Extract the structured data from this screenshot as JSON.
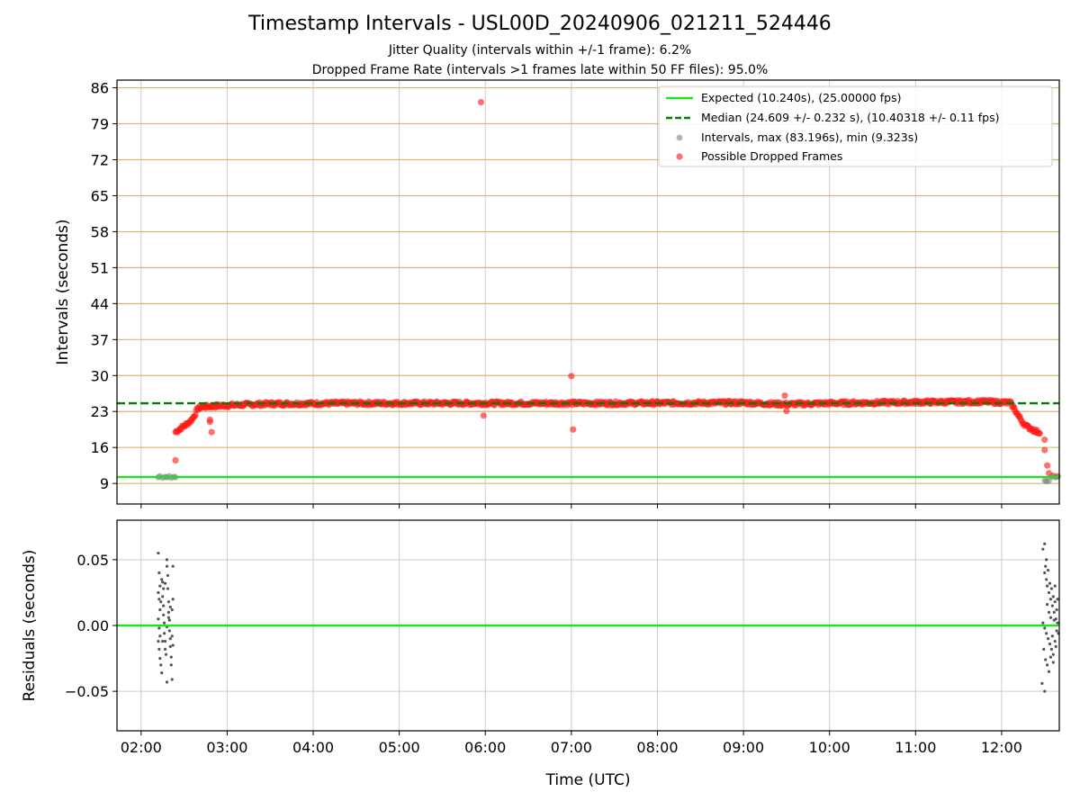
{
  "title": "Timestamp Intervals - USL00D_20240906_021211_524446",
  "subtitle_lines": [
    "Jitter Quality (intervals within +/-1 frame): 6.2%",
    "Dropped Frame Rate (intervals >1 frames late within 50 FF files): 95.0%"
  ],
  "colors": {
    "expected": "#22e022",
    "median": "#007f00",
    "intervals": "#808080",
    "dropped": "#ff1a1a",
    "grid_h_top": "#d4b872",
    "grid": "#cccccc"
  },
  "chart_data": [
    {
      "type": "scatter",
      "ylabel": "Intervals (seconds)",
      "xlabel": "",
      "x_unit": "hours UTC",
      "xlim": [
        1.72,
        12.67
      ],
      "ylim": [
        5.0,
        87.5
      ],
      "x_ticks": [
        2,
        3,
        4,
        5,
        6,
        7,
        8,
        9,
        10,
        11,
        12
      ],
      "y_ticks": [
        9,
        16,
        23,
        30,
        37,
        44,
        51,
        58,
        65,
        72,
        79,
        86
      ],
      "y_tick_labels": [
        "9",
        "16",
        "23",
        "30",
        "37",
        "44",
        "51",
        "58",
        "65",
        "72",
        "79",
        "86"
      ],
      "legend_position": "top-right",
      "reference_lines": [
        {
          "name": "Expected (10.240s), (25.00000 fps)",
          "y": 10.24,
          "style": "solid"
        },
        {
          "name": "Median (24.609 +/- 0.232 s), (10.40318 +/- 0.11 fps)",
          "y": 24.609,
          "style": "dashed"
        }
      ],
      "series": [
        {
          "name": "Intervals, max (83.196s), min (9.323s)",
          "points": [
            [
              2.2,
              10.2
            ],
            [
              2.22,
              10.4
            ],
            [
              2.25,
              10.1
            ],
            [
              2.28,
              10.3
            ],
            [
              2.3,
              10.2
            ],
            [
              2.33,
              10.4
            ],
            [
              2.35,
              10.1
            ],
            [
              2.38,
              10.3
            ],
            [
              2.4,
              10.2
            ],
            [
              12.5,
              9.6
            ],
            [
              12.52,
              9.4
            ],
            [
              12.55,
              9.5
            ],
            [
              12.58,
              10.3
            ],
            [
              12.62,
              10.2
            ],
            [
              12.65,
              10.3
            ]
          ]
        },
        {
          "name": "Possible Dropped Frames",
          "band": [
            [
              2.4,
              19.0
            ],
            [
              2.45,
              19.6
            ],
            [
              2.5,
              20.2
            ],
            [
              2.55,
              20.8
            ],
            [
              2.6,
              21.6
            ],
            [
              2.63,
              22.6
            ],
            [
              2.66,
              23.6
            ],
            [
              2.7,
              23.9
            ],
            [
              2.8,
              24.0
            ],
            [
              3.0,
              24.2
            ],
            [
              3.5,
              24.5
            ],
            [
              4.5,
              24.6
            ],
            [
              6.0,
              24.6
            ],
            [
              7.5,
              24.6
            ],
            [
              9.0,
              24.7
            ],
            [
              9.5,
              24.4
            ],
            [
              10.0,
              24.6
            ],
            [
              11.0,
              24.8
            ],
            [
              11.8,
              24.9
            ],
            [
              12.1,
              24.7
            ],
            [
              12.15,
              23.5
            ],
            [
              12.2,
              22.0
            ],
            [
              12.25,
              20.8
            ],
            [
              12.3,
              20.0
            ],
            [
              12.35,
              19.6
            ],
            [
              12.4,
              19.1
            ],
            [
              12.45,
              18.9
            ]
          ],
          "outliers": [
            [
              2.4,
              13.5
            ],
            [
              2.8,
              21.4
            ],
            [
              2.8,
              21.0
            ],
            [
              2.82,
              19.0
            ],
            [
              5.95,
              83.2
            ],
            [
              5.98,
              22.2
            ],
            [
              7.0,
              29.9
            ],
            [
              7.02,
              19.5
            ],
            [
              9.48,
              26.1
            ],
            [
              9.5,
              23.1
            ],
            [
              12.5,
              17.5
            ],
            [
              12.5,
              15.5
            ],
            [
              12.53,
              12.5
            ],
            [
              12.55,
              11.0
            ],
            [
              12.6,
              10.5
            ],
            [
              12.65,
              10.4
            ]
          ]
        }
      ]
    },
    {
      "type": "scatter",
      "ylabel": "Residuals (seconds)",
      "xlabel": "Time (UTC)",
      "x_unit": "hours UTC",
      "xlim": [
        1.72,
        12.67
      ],
      "ylim": [
        -0.08,
        0.08
      ],
      "x_ticks": [
        2,
        3,
        4,
        5,
        6,
        7,
        8,
        9,
        10,
        11,
        12
      ],
      "x_tick_labels": [
        "02:00",
        "03:00",
        "04:00",
        "05:00",
        "06:00",
        "07:00",
        "08:00",
        "09:00",
        "10:00",
        "11:00",
        "12:00"
      ],
      "y_ticks": [
        -0.05,
        0.0,
        0.05
      ],
      "y_tick_labels": [
        "−0.05",
        "0.00",
        "0.05"
      ],
      "zero_line": 0.0,
      "series": [
        {
          "name": "",
          "points": [
            [
              2.2,
              0.055
            ],
            [
              2.21,
              0.04
            ],
            [
              2.22,
              0.03
            ],
            [
              2.2,
              0.025
            ],
            [
              2.21,
              0.02
            ],
            [
              2.22,
              0.012
            ],
            [
              2.2,
              0.005
            ],
            [
              2.21,
              -0.002
            ],
            [
              2.22,
              -0.008
            ],
            [
              2.2,
              -0.012
            ],
            [
              2.21,
              -0.018
            ],
            [
              2.22,
              -0.025
            ],
            [
              2.23,
              -0.03
            ],
            [
              2.24,
              0.035
            ],
            [
              2.25,
              0.033
            ],
            [
              2.25,
              0.022
            ],
            [
              2.26,
              0.015
            ],
            [
              2.26,
              0.008
            ],
            [
              2.27,
              0.002
            ],
            [
              2.27,
              -0.006
            ],
            [
              2.28,
              -0.012
            ],
            [
              2.28,
              -0.018
            ],
            [
              2.29,
              -0.022
            ],
            [
              2.3,
              0.05
            ],
            [
              2.3,
              0.045
            ],
            [
              2.31,
              0.038
            ],
            [
              2.31,
              0.028
            ],
            [
              2.32,
              0.018
            ],
            [
              2.32,
              0.01
            ],
            [
              2.33,
              0.004
            ],
            [
              2.33,
              -0.004
            ],
            [
              2.34,
              -0.01
            ],
            [
              2.34,
              -0.016
            ],
            [
              2.35,
              -0.024
            ],
            [
              2.35,
              -0.03
            ],
            [
              2.3,
              -0.043
            ],
            [
              2.36,
              -0.041
            ],
            [
              2.37,
              0.045
            ],
            [
              2.37,
              0.02
            ],
            [
              2.37,
              -0.015
            ],
            [
              2.24,
              -0.036
            ],
            [
              2.26,
              0.028
            ],
            [
              2.28,
              0.032
            ],
            [
              2.3,
              -0.001
            ],
            [
              2.32,
              0.006
            ],
            [
              2.34,
              0.014
            ],
            [
              2.36,
              0.012
            ],
            [
              2.36,
              -0.008
            ],
            [
              2.25,
              -0.012
            ],
            [
              2.23,
              0.018
            ],
            [
              12.48,
              0.058
            ],
            [
              12.5,
              0.062
            ],
            [
              12.51,
              0.045
            ],
            [
              12.52,
              0.05
            ],
            [
              12.5,
              0.04
            ],
            [
              12.52,
              0.035
            ],
            [
              12.53,
              0.03
            ],
            [
              12.54,
              0.042
            ],
            [
              12.55,
              0.025
            ],
            [
              12.56,
              0.032
            ],
            [
              12.57,
              0.02
            ],
            [
              12.58,
              0.028
            ],
            [
              12.59,
              0.015
            ],
            [
              12.6,
              0.022
            ],
            [
              12.61,
              0.01
            ],
            [
              12.62,
              0.018
            ],
            [
              12.63,
              0.005
            ],
            [
              12.64,
              0.012
            ],
            [
              12.48,
              0.002
            ],
            [
              12.5,
              -0.002
            ],
            [
              12.52,
              -0.006
            ],
            [
              12.54,
              -0.01
            ],
            [
              12.56,
              -0.014
            ],
            [
              12.58,
              -0.018
            ],
            [
              12.6,
              -0.022
            ],
            [
              12.62,
              -0.012
            ],
            [
              12.64,
              -0.004
            ],
            [
              12.49,
              -0.018
            ],
            [
              12.51,
              -0.026
            ],
            [
              12.53,
              -0.03
            ],
            [
              12.55,
              -0.035
            ],
            [
              12.57,
              -0.024
            ],
            [
              12.59,
              -0.008
            ],
            [
              12.61,
              0.004
            ],
            [
              12.63,
              -0.016
            ],
            [
              12.65,
              0.002
            ],
            [
              12.66,
              -0.006
            ],
            [
              12.47,
              -0.044
            ],
            [
              12.5,
              -0.05
            ],
            [
              12.6,
              -0.028
            ],
            [
              12.55,
              0.01
            ],
            [
              12.53,
              0.016
            ],
            [
              12.57,
              0.006
            ],
            [
              12.62,
              0.03
            ],
            [
              12.65,
              0.02
            ]
          ]
        }
      ]
    }
  ]
}
